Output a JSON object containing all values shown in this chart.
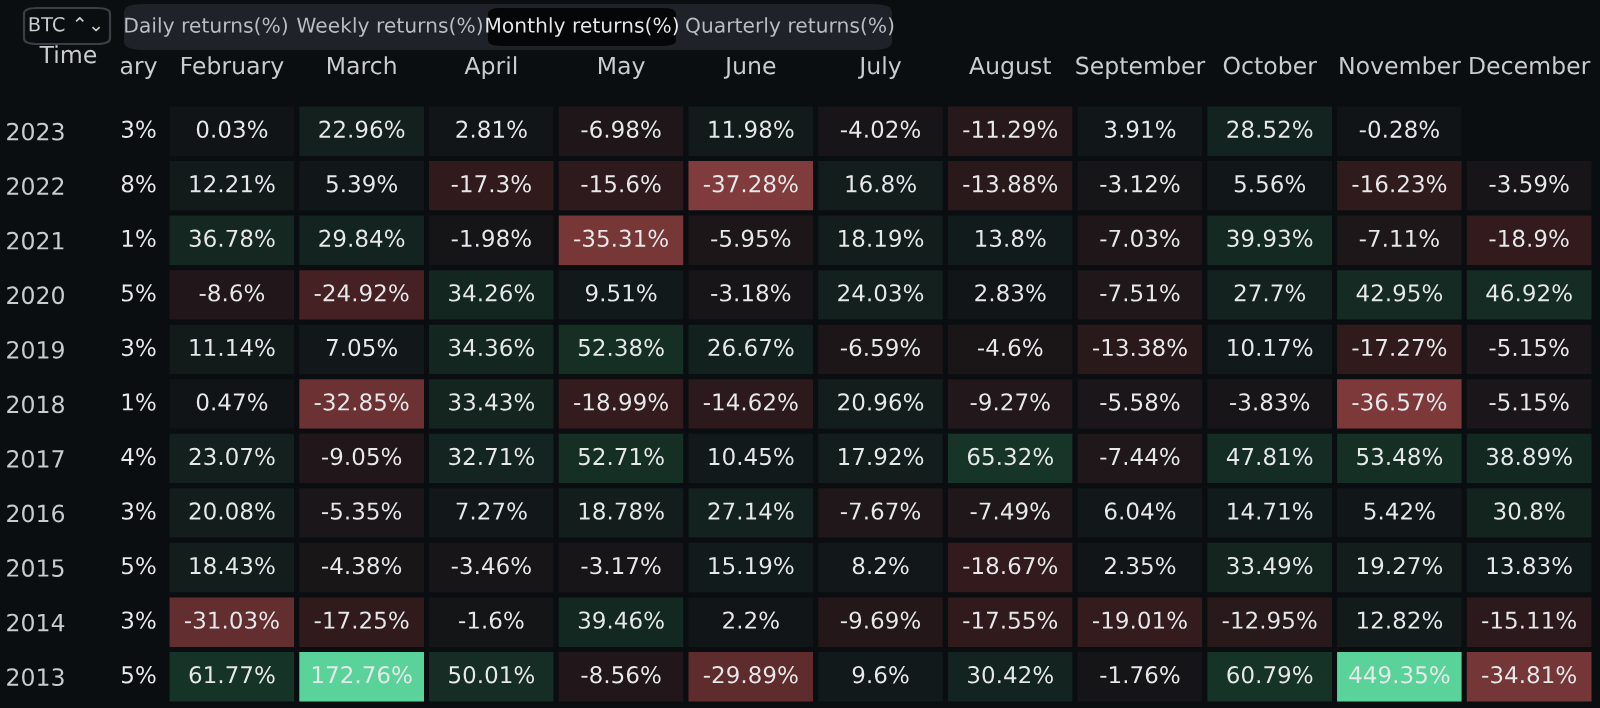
{
  "chart_data": {
    "type": "heatmap",
    "annotations": [
      "BTC ⌃⌄",
      "Daily returns(%)",
      "Weekly returns(%)",
      "Monthly returns(%)",
      "Quarterly returns(%)"
    ],
    "ylabel": "Time",
    "categories": [
      "ary",
      "February",
      "March",
      "April",
      "May",
      "June",
      "July",
      "August",
      "September",
      "October",
      "November",
      "December"
    ],
    "y_categories": [
      "2023",
      "2022",
      "2021",
      "2020",
      "2019",
      "2018",
      "2017",
      "2016",
      "2015",
      "2014",
      "2013"
    ],
    "cells": [
      [
        null,
        0.03,
        22.96,
        2.81,
        -6.98,
        11.98,
        -4.02,
        -11.29,
        3.91,
        28.52,
        -0.28,
        null
      ],
      [
        null,
        12.21,
        5.39,
        -17.3,
        -15.6,
        -37.28,
        16.8,
        -13.88,
        -3.12,
        5.56,
        -16.23,
        -3.59
      ],
      [
        null,
        36.78,
        29.84,
        -1.98,
        -35.31,
        -5.95,
        18.19,
        13.8,
        -7.03,
        39.93,
        -7.11,
        -18.9
      ],
      [
        null,
        -8.6,
        -24.92,
        34.26,
        9.51,
        -3.18,
        24.03,
        2.83,
        -7.51,
        27.7,
        42.95,
        46.92
      ],
      [
        null,
        11.14,
        7.05,
        34.36,
        52.38,
        26.67,
        -6.59,
        -4.6,
        -13.38,
        10.17,
        -17.27,
        -5.15
      ],
      [
        null,
        0.47,
        -32.85,
        33.43,
        -18.99,
        -14.62,
        20.96,
        -9.27,
        -5.58,
        -3.83,
        -36.57,
        -5.15
      ],
      [
        null,
        23.07,
        -9.05,
        32.71,
        52.71,
        10.45,
        17.92,
        65.32,
        -7.44,
        47.81,
        53.48,
        38.89
      ],
      [
        null,
        20.08,
        -5.35,
        7.27,
        18.78,
        27.14,
        -7.67,
        -7.49,
        6.04,
        14.71,
        5.42,
        30.8
      ],
      [
        null,
        18.43,
        -4.38,
        -3.46,
        -3.17,
        15.19,
        8.2,
        -18.67,
        2.35,
        33.49,
        19.27,
        13.83
      ],
      [
        null,
        -31.03,
        -17.25,
        -1.6,
        39.46,
        2.2,
        -9.69,
        -17.55,
        -19.01,
        -12.95,
        12.82,
        -15.11
      ],
      [
        null,
        61.77,
        172.76,
        50.01,
        -8.56,
        -29.89,
        9.6,
        30.42,
        -1.76,
        60.79,
        449.35,
        -34.81
      ]
    ],
    "cell_labels": [
      [
        "3%",
        "0.03%",
        "22.96%",
        "2.81%",
        "-6.98%",
        "11.98%",
        "-4.02%",
        "-11.29%",
        "3.91%",
        "28.52%",
        "-0.28%",
        null
      ],
      [
        "8%",
        "12.21%",
        "5.39%",
        "-17.3%",
        "-15.6%",
        "-37.28%",
        "16.8%",
        "-13.88%",
        "-3.12%",
        "5.56%",
        "-16.23%",
        "-3.59%"
      ],
      [
        "1%",
        "36.78%",
        "29.84%",
        "-1.98%",
        "-35.31%",
        "-5.95%",
        "18.19%",
        "13.8%",
        "-7.03%",
        "39.93%",
        "-7.11%",
        "-18.9%"
      ],
      [
        "5%",
        "-8.6%",
        "-24.92%",
        "34.26%",
        "9.51%",
        "-3.18%",
        "24.03%",
        "2.83%",
        "-7.51%",
        "27.7%",
        "42.95%",
        "46.92%"
      ],
      [
        "3%",
        "11.14%",
        "7.05%",
        "34.36%",
        "52.38%",
        "26.67%",
        "-6.59%",
        "-4.6%",
        "-13.38%",
        "10.17%",
        "-17.27%",
        "-5.15%"
      ],
      [
        "1%",
        "0.47%",
        "-32.85%",
        "33.43%",
        "-18.99%",
        "-14.62%",
        "20.96%",
        "-9.27%",
        "-5.58%",
        "-3.83%",
        "-36.57%",
        "-5.15%"
      ],
      [
        "4%",
        "23.07%",
        "-9.05%",
        "32.71%",
        "52.71%",
        "10.45%",
        "17.92%",
        "65.32%",
        "-7.44%",
        "47.81%",
        "53.48%",
        "38.89%"
      ],
      [
        "3%",
        "20.08%",
        "-5.35%",
        "7.27%",
        "18.78%",
        "27.14%",
        "-7.67%",
        "-7.49%",
        "6.04%",
        "14.71%",
        "5.42%",
        "30.8%"
      ],
      [
        "5%",
        "18.43%",
        "-4.38%",
        "-3.46%",
        "-3.17%",
        "15.19%",
        "8.2%",
        "-18.67%",
        "2.35%",
        "33.49%",
        "19.27%",
        "13.83%"
      ],
      [
        "3%",
        "-31.03%",
        "-17.25%",
        "-1.6%",
        "39.46%",
        "2.2%",
        "-9.69%",
        "-17.55%",
        "-19.01%",
        "-12.95%",
        "12.82%",
        "-15.11%"
      ],
      [
        "5%",
        "61.77%",
        "172.76%",
        "50.01%",
        "-8.56%",
        "-29.89%",
        "9.6%",
        "30.42%",
        "-1.76%",
        "60.79%",
        "449.35%",
        "-34.81%"
      ]
    ]
  }
}
